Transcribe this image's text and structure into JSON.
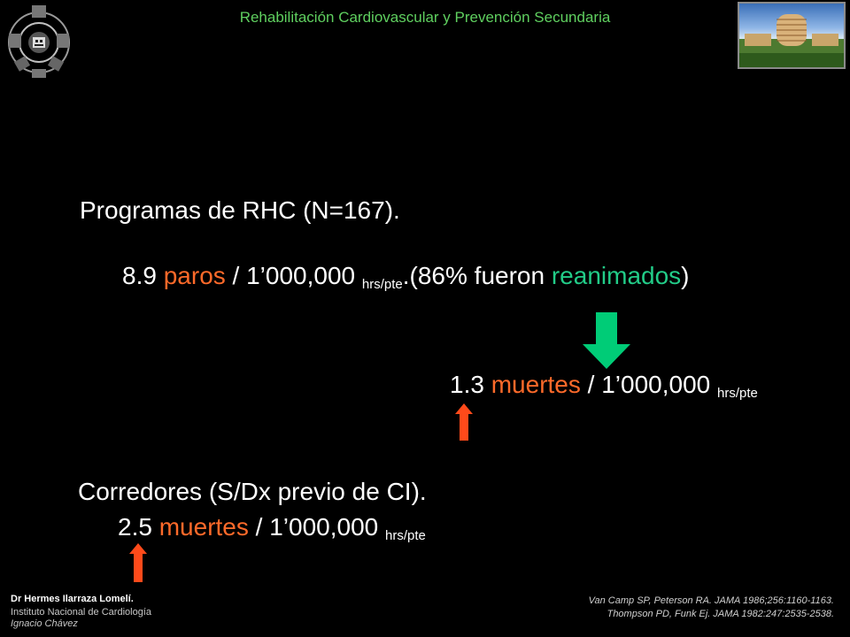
{
  "header": {
    "title": "Rehabilitación Cardiovascular y  Prevención Secundaria"
  },
  "programs": {
    "title": "Programas de RHC (N=167).",
    "rate_value": "8.9",
    "rate_term": "paros",
    "rate_rest": " / 1’000,000 ",
    "rate_unit": "hrs/pte",
    "dot": ".",
    "paren_open": "(86% fueron ",
    "resuscitated": "reanimados",
    "paren_close": ")"
  },
  "deaths": {
    "value": "1.3",
    "term": "muertes",
    "rest": " / 1’000,000 ",
    "unit": "hrs/pte"
  },
  "runners": {
    "title": "Corredores (S/Dx previo de CI).",
    "value": "2.5",
    "term": "muertes",
    "rest": " / 1’000,000 ",
    "unit": "hrs/pte"
  },
  "footer": {
    "author": "Dr Hermes  Ilarraza Lomelí.",
    "institution_line1": "Instituto Nacional de Cardiología",
    "institution_line2": "Ignacio Chávez"
  },
  "references": [
    "Van Camp SP, Peterson RA. JAMA 1986;256:1160-1163.",
    "Thompson PD, Funk Ej. JAMA 1982:247:2535-2538."
  ],
  "colors": {
    "header_text": "#5fcf5f",
    "highlight_red": "#ff6a2a",
    "highlight_green": "#22cc88",
    "arrow_down": "#00cc77",
    "arrow_up": "#ff4a1a"
  },
  "icons": [
    "institute-logo",
    "hospital-building-photo",
    "down-arrow-icon",
    "up-arrow-icon"
  ]
}
